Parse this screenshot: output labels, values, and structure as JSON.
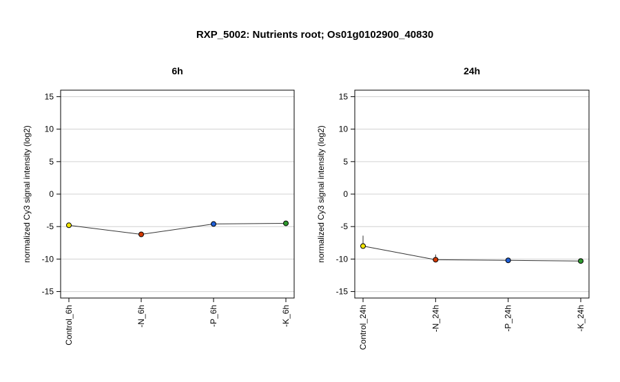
{
  "figure": {
    "title": "RXP_5002: Nutrients root; Os01g0102900_40830"
  },
  "chart_data": [
    {
      "type": "line",
      "title": "6h",
      "xlabel": "",
      "ylabel": "normalized Cy3 signal intensity (log2)",
      "ylim": [
        -16,
        16
      ],
      "yticks": [
        -15,
        -10,
        -5,
        0,
        5,
        10,
        15
      ],
      "grid": true,
      "categories": [
        "Control_6h",
        "-N_6h",
        "-P_6h",
        "-K_6h"
      ],
      "values": [
        -4.8,
        -6.2,
        -4.6,
        -4.5
      ],
      "errors": [
        0,
        0,
        0,
        0
      ],
      "point_colors": [
        "#f2e600",
        "#d43a00",
        "#1f5fd6",
        "#2e9a2e"
      ]
    },
    {
      "type": "line",
      "title": "24h",
      "xlabel": "",
      "ylabel": "normalized Cy3 signal intensity (log2)",
      "ylim": [
        -16,
        16
      ],
      "yticks": [
        -15,
        -10,
        -5,
        0,
        5,
        10,
        15
      ],
      "grid": true,
      "categories": [
        "Control_24h",
        "-N_24h",
        "-P_24h",
        "-K_24h"
      ],
      "values": [
        -8.0,
        -10.1,
        -10.2,
        -10.3
      ],
      "errors": [
        1.6,
        0.8,
        0,
        0
      ],
      "point_colors": [
        "#f2e600",
        "#d43a00",
        "#1f5fd6",
        "#2e9a2e"
      ]
    }
  ]
}
